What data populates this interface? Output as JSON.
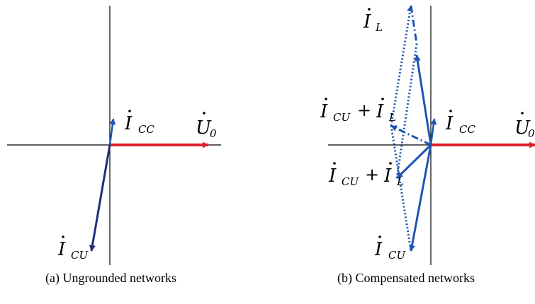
{
  "colors": {
    "axis": "#000000",
    "voltage": "#e0202e",
    "current_dark": "#1f2f7a",
    "current": "#2155b0"
  },
  "panel_a": {
    "caption": "(a) Ungrounded networks",
    "labels": {
      "icc": {
        "main": "I",
        "sub": "CC"
      },
      "u0": {
        "main": "U",
        "sub": "0"
      },
      "icu": {
        "main": "I",
        "sub": "CU"
      }
    }
  },
  "panel_b": {
    "caption": "(b) Compensated networks",
    "labels": {
      "il": {
        "main": "I",
        "sub": "L"
      },
      "sum_upper": {
        "main1": "I",
        "sub1": "CU",
        "plus": "+",
        "main2": "I",
        "sub2": "L"
      },
      "icc": {
        "main": "I",
        "sub": "CC"
      },
      "u0": {
        "main": "U",
        "sub": "0"
      },
      "sum_lower": {
        "main1": "I",
        "sub1": "CU",
        "plus": "+",
        "main2": "I",
        "sub2": "L"
      },
      "icu": {
        "main": "I",
        "sub": "CU"
      }
    }
  }
}
